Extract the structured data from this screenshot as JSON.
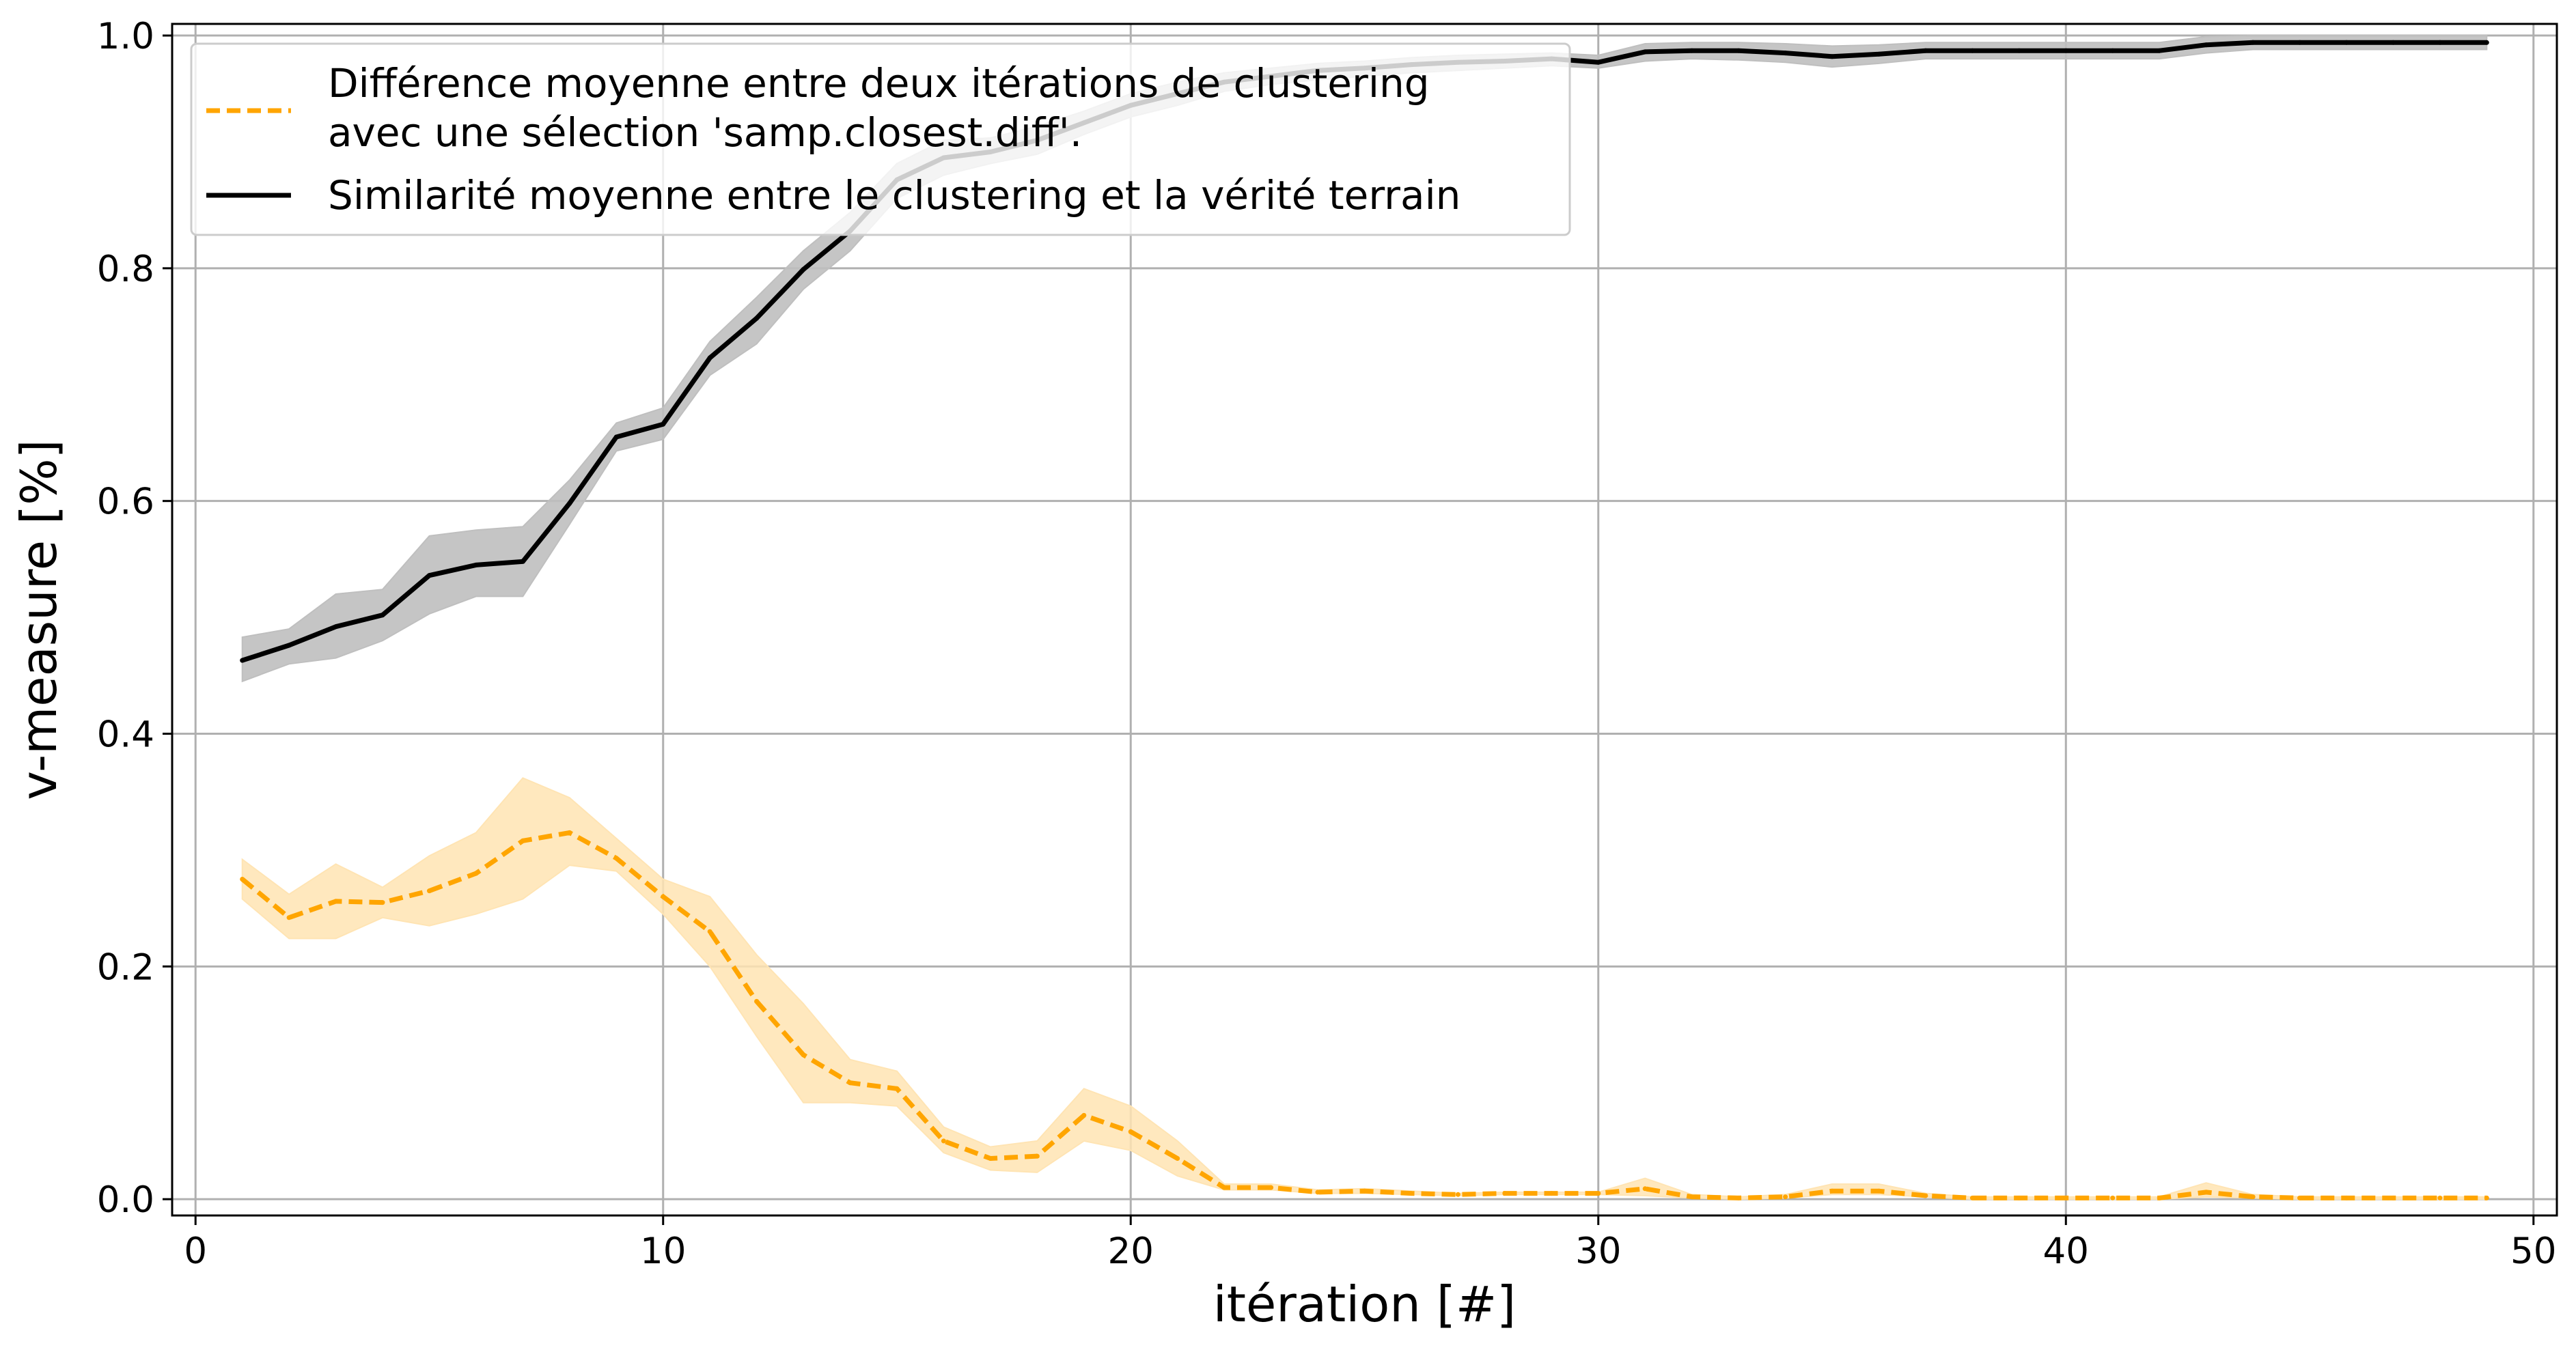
{
  "colors": {
    "orange": "#FFA500",
    "black": "#000000",
    "grid": "#b0b0b0",
    "orange_band": "#FFE4B3",
    "gray_band": "#BFBFBF"
  },
  "chart_data": {
    "type": "line",
    "xlabel": "itération [#]",
    "ylabel": "v-measure [%]",
    "xlim": [
      -0.5,
      50.5
    ],
    "ylim": [
      -0.014,
      1.01
    ],
    "xticks": [
      0,
      10,
      20,
      30,
      40,
      50
    ],
    "yticks": [
      0.0,
      0.2,
      0.4,
      0.6,
      0.8,
      1.0
    ],
    "xtick_labels": [
      "0",
      "10",
      "20",
      "30",
      "40",
      "50"
    ],
    "ytick_labels": [
      "0.0",
      "0.2",
      "0.4",
      "0.6",
      "0.8",
      "1.0"
    ],
    "grid": true,
    "legend_position": "top-left",
    "x": [
      1,
      2,
      3,
      4,
      5,
      6,
      7,
      8,
      9,
      10,
      11,
      12,
      13,
      14,
      15,
      16,
      17,
      18,
      19,
      20,
      21,
      22,
      23,
      24,
      25,
      26,
      27,
      28,
      29,
      30,
      31,
      32,
      33,
      34,
      35,
      36,
      37,
      38,
      39,
      40,
      41,
      42,
      43,
      44,
      45,
      46,
      47,
      48,
      49
    ],
    "series": [
      {
        "name": "Différence moyenne entre deux itérations de clustering avec une sélection 'samp.closest.diff'.",
        "legend_lines": [
          "Différence moyenne entre deux itérations de clustering",
          "avec une sélection 'samp.closest.diff'."
        ],
        "style": "dashed",
        "color": "#FFA500",
        "values": [
          0.275,
          0.242,
          0.256,
          0.255,
          0.265,
          0.28,
          0.308,
          0.315,
          0.293,
          0.26,
          0.23,
          0.17,
          0.124,
          0.1,
          0.095,
          0.05,
          0.035,
          0.037,
          0.072,
          0.058,
          0.035,
          0.01,
          0.01,
          0.006,
          0.007,
          0.005,
          0.004,
          0.005,
          0.005,
          0.005,
          0.009,
          0.002,
          0.001,
          0.002,
          0.007,
          0.007,
          0.003,
          0.001,
          0.001,
          0.001,
          0.001,
          0.001,
          0.006,
          0.002,
          0.001,
          0.001,
          0.001,
          0.001,
          0.001
        ],
        "lower": [
          0.258,
          0.224,
          0.224,
          0.242,
          0.235,
          0.245,
          0.258,
          0.287,
          0.282,
          0.245,
          0.2,
          0.14,
          0.083,
          0.083,
          0.08,
          0.04,
          0.025,
          0.023,
          0.05,
          0.042,
          0.02,
          0.008,
          0.008,
          0.005,
          0.005,
          0.004,
          0.003,
          0.004,
          0.004,
          0.004,
          0.003,
          0.001,
          0.0,
          0.001,
          0.004,
          0.004,
          0.002,
          0.0,
          0.0,
          0.0,
          0.0,
          0.0,
          0.002,
          0.001,
          0.0,
          0.0,
          0.0,
          0.0,
          0.0
        ],
        "upper": [
          0.292,
          0.262,
          0.288,
          0.268,
          0.295,
          0.315,
          0.362,
          0.345,
          0.31,
          0.275,
          0.26,
          0.21,
          0.168,
          0.12,
          0.11,
          0.062,
          0.045,
          0.05,
          0.095,
          0.08,
          0.05,
          0.013,
          0.013,
          0.008,
          0.009,
          0.007,
          0.005,
          0.006,
          0.006,
          0.006,
          0.018,
          0.004,
          0.002,
          0.004,
          0.013,
          0.013,
          0.005,
          0.002,
          0.002,
          0.002,
          0.002,
          0.002,
          0.014,
          0.004,
          0.002,
          0.002,
          0.002,
          0.002,
          0.002
        ]
      },
      {
        "name": "Similarité moyenne entre le clustering et la vérité terrain",
        "legend_lines": [
          "Similarité moyenne entre le clustering et la vérité terrain"
        ],
        "style": "solid",
        "color": "#000000",
        "values": [
          0.463,
          0.476,
          0.492,
          0.502,
          0.536,
          0.545,
          0.548,
          0.598,
          0.655,
          0.666,
          0.723,
          0.757,
          0.799,
          0.832,
          0.876,
          0.895,
          0.9,
          0.91,
          0.925,
          0.94,
          0.95,
          0.96,
          0.965,
          0.97,
          0.972,
          0.975,
          0.977,
          0.978,
          0.98,
          0.977,
          0.986,
          0.987,
          0.987,
          0.985,
          0.982,
          0.984,
          0.987,
          0.987,
          0.987,
          0.987,
          0.987,
          0.987,
          0.992,
          0.994,
          0.994,
          0.994,
          0.994,
          0.994,
          0.994
        ],
        "lower": [
          0.445,
          0.46,
          0.465,
          0.48,
          0.503,
          0.518,
          0.518,
          0.58,
          0.643,
          0.653,
          0.708,
          0.735,
          0.782,
          0.815,
          0.86,
          0.88,
          0.89,
          0.898,
          0.915,
          0.93,
          0.94,
          0.952,
          0.958,
          0.962,
          0.965,
          0.968,
          0.97,
          0.972,
          0.974,
          0.972,
          0.978,
          0.98,
          0.979,
          0.977,
          0.973,
          0.976,
          0.98,
          0.98,
          0.98,
          0.98,
          0.98,
          0.98,
          0.985,
          0.988,
          0.988,
          0.988,
          0.988,
          0.988,
          0.988
        ],
        "upper": [
          0.483,
          0.49,
          0.52,
          0.524,
          0.57,
          0.575,
          0.578,
          0.618,
          0.667,
          0.68,
          0.737,
          0.775,
          0.815,
          0.848,
          0.89,
          0.91,
          0.912,
          0.922,
          0.935,
          0.95,
          0.96,
          0.968,
          0.972,
          0.976,
          0.978,
          0.981,
          0.983,
          0.984,
          0.985,
          0.983,
          0.993,
          0.994,
          0.994,
          0.993,
          0.991,
          0.992,
          0.994,
          0.994,
          0.994,
          0.994,
          0.994,
          0.994,
          0.999,
          1.0,
          1.0,
          1.0,
          1.0,
          1.0,
          1.0
        ]
      }
    ]
  }
}
